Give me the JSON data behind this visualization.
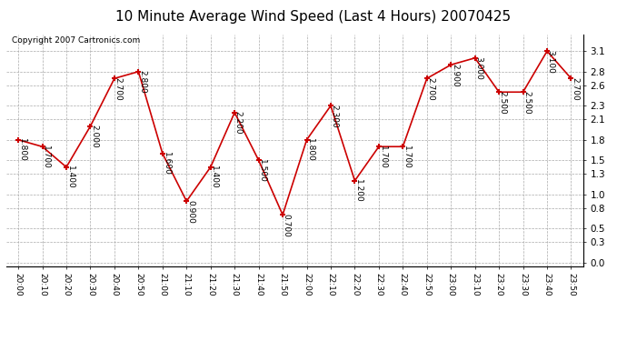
{
  "title": "10 Minute Average Wind Speed (Last 4 Hours) 20070425",
  "copyright": "Copyright 2007 Cartronics.com",
  "times": [
    "20:00",
    "20:10",
    "20:20",
    "20:30",
    "20:40",
    "20:50",
    "21:00",
    "21:10",
    "21:20",
    "21:30",
    "21:40",
    "21:50",
    "22:00",
    "22:10",
    "22:20",
    "22:30",
    "22:40",
    "22:50",
    "23:00",
    "23:10",
    "23:20",
    "23:30",
    "23:40",
    "23:50"
  ],
  "values": [
    1.8,
    1.7,
    1.4,
    2.0,
    2.7,
    2.8,
    1.6,
    0.9,
    1.4,
    2.2,
    1.5,
    0.7,
    1.8,
    2.3,
    1.2,
    1.7,
    1.7,
    2.7,
    2.9,
    3.0,
    2.5,
    2.5,
    3.1,
    2.7
  ],
  "line_color": "#cc0000",
  "marker_color": "#cc0000",
  "bg_color": "#ffffff",
  "grid_color": "#aaaaaa",
  "yticks": [
    0.0,
    0.3,
    0.5,
    0.8,
    1.0,
    1.3,
    1.5,
    1.8,
    2.1,
    2.3,
    2.6,
    2.8,
    3.1
  ],
  "ylim": [
    -0.05,
    3.35
  ],
  "title_fontsize": 11,
  "label_fontsize": 6.5,
  "copyright_fontsize": 6.5
}
